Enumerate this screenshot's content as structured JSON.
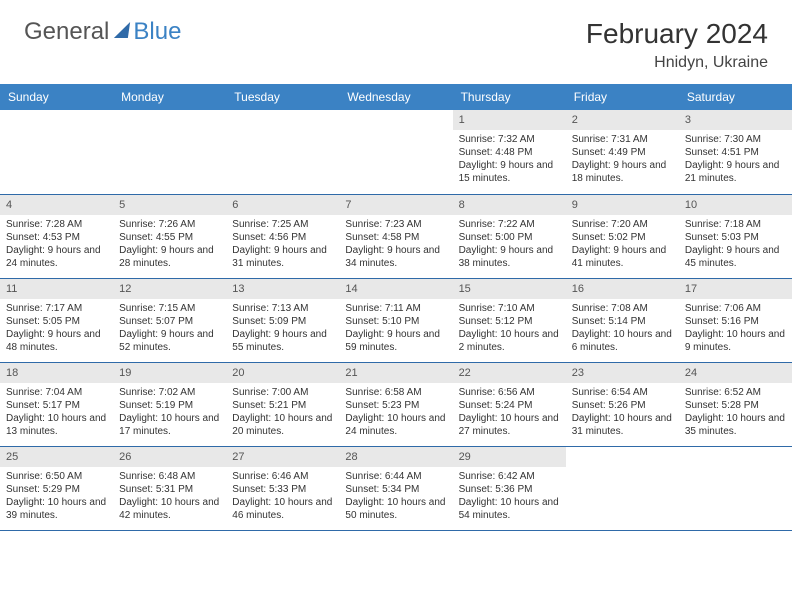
{
  "logo": {
    "general": "General",
    "blue": "Blue"
  },
  "header": {
    "month_title": "February 2024",
    "location": "Hnidyn, Ukraine"
  },
  "colors": {
    "header_bg": "#3b82c4",
    "row_border": "#2f6aa8",
    "daynum_bg": "#e8e8e8",
    "text": "#333333"
  },
  "day_names": [
    "Sunday",
    "Monday",
    "Tuesday",
    "Wednesday",
    "Thursday",
    "Friday",
    "Saturday"
  ],
  "weeks": [
    [
      null,
      null,
      null,
      null,
      {
        "n": "1",
        "sr": "Sunrise: 7:32 AM",
        "ss": "Sunset: 4:48 PM",
        "dl": "Daylight: 9 hours and 15 minutes."
      },
      {
        "n": "2",
        "sr": "Sunrise: 7:31 AM",
        "ss": "Sunset: 4:49 PM",
        "dl": "Daylight: 9 hours and 18 minutes."
      },
      {
        "n": "3",
        "sr": "Sunrise: 7:30 AM",
        "ss": "Sunset: 4:51 PM",
        "dl": "Daylight: 9 hours and 21 minutes."
      }
    ],
    [
      {
        "n": "4",
        "sr": "Sunrise: 7:28 AM",
        "ss": "Sunset: 4:53 PM",
        "dl": "Daylight: 9 hours and 24 minutes."
      },
      {
        "n": "5",
        "sr": "Sunrise: 7:26 AM",
        "ss": "Sunset: 4:55 PM",
        "dl": "Daylight: 9 hours and 28 minutes."
      },
      {
        "n": "6",
        "sr": "Sunrise: 7:25 AM",
        "ss": "Sunset: 4:56 PM",
        "dl": "Daylight: 9 hours and 31 minutes."
      },
      {
        "n": "7",
        "sr": "Sunrise: 7:23 AM",
        "ss": "Sunset: 4:58 PM",
        "dl": "Daylight: 9 hours and 34 minutes."
      },
      {
        "n": "8",
        "sr": "Sunrise: 7:22 AM",
        "ss": "Sunset: 5:00 PM",
        "dl": "Daylight: 9 hours and 38 minutes."
      },
      {
        "n": "9",
        "sr": "Sunrise: 7:20 AM",
        "ss": "Sunset: 5:02 PM",
        "dl": "Daylight: 9 hours and 41 minutes."
      },
      {
        "n": "10",
        "sr": "Sunrise: 7:18 AM",
        "ss": "Sunset: 5:03 PM",
        "dl": "Daylight: 9 hours and 45 minutes."
      }
    ],
    [
      {
        "n": "11",
        "sr": "Sunrise: 7:17 AM",
        "ss": "Sunset: 5:05 PM",
        "dl": "Daylight: 9 hours and 48 minutes."
      },
      {
        "n": "12",
        "sr": "Sunrise: 7:15 AM",
        "ss": "Sunset: 5:07 PM",
        "dl": "Daylight: 9 hours and 52 minutes."
      },
      {
        "n": "13",
        "sr": "Sunrise: 7:13 AM",
        "ss": "Sunset: 5:09 PM",
        "dl": "Daylight: 9 hours and 55 minutes."
      },
      {
        "n": "14",
        "sr": "Sunrise: 7:11 AM",
        "ss": "Sunset: 5:10 PM",
        "dl": "Daylight: 9 hours and 59 minutes."
      },
      {
        "n": "15",
        "sr": "Sunrise: 7:10 AM",
        "ss": "Sunset: 5:12 PM",
        "dl": "Daylight: 10 hours and 2 minutes."
      },
      {
        "n": "16",
        "sr": "Sunrise: 7:08 AM",
        "ss": "Sunset: 5:14 PM",
        "dl": "Daylight: 10 hours and 6 minutes."
      },
      {
        "n": "17",
        "sr": "Sunrise: 7:06 AM",
        "ss": "Sunset: 5:16 PM",
        "dl": "Daylight: 10 hours and 9 minutes."
      }
    ],
    [
      {
        "n": "18",
        "sr": "Sunrise: 7:04 AM",
        "ss": "Sunset: 5:17 PM",
        "dl": "Daylight: 10 hours and 13 minutes."
      },
      {
        "n": "19",
        "sr": "Sunrise: 7:02 AM",
        "ss": "Sunset: 5:19 PM",
        "dl": "Daylight: 10 hours and 17 minutes."
      },
      {
        "n": "20",
        "sr": "Sunrise: 7:00 AM",
        "ss": "Sunset: 5:21 PM",
        "dl": "Daylight: 10 hours and 20 minutes."
      },
      {
        "n": "21",
        "sr": "Sunrise: 6:58 AM",
        "ss": "Sunset: 5:23 PM",
        "dl": "Daylight: 10 hours and 24 minutes."
      },
      {
        "n": "22",
        "sr": "Sunrise: 6:56 AM",
        "ss": "Sunset: 5:24 PM",
        "dl": "Daylight: 10 hours and 27 minutes."
      },
      {
        "n": "23",
        "sr": "Sunrise: 6:54 AM",
        "ss": "Sunset: 5:26 PM",
        "dl": "Daylight: 10 hours and 31 minutes."
      },
      {
        "n": "24",
        "sr": "Sunrise: 6:52 AM",
        "ss": "Sunset: 5:28 PM",
        "dl": "Daylight: 10 hours and 35 minutes."
      }
    ],
    [
      {
        "n": "25",
        "sr": "Sunrise: 6:50 AM",
        "ss": "Sunset: 5:29 PM",
        "dl": "Daylight: 10 hours and 39 minutes."
      },
      {
        "n": "26",
        "sr": "Sunrise: 6:48 AM",
        "ss": "Sunset: 5:31 PM",
        "dl": "Daylight: 10 hours and 42 minutes."
      },
      {
        "n": "27",
        "sr": "Sunrise: 6:46 AM",
        "ss": "Sunset: 5:33 PM",
        "dl": "Daylight: 10 hours and 46 minutes."
      },
      {
        "n": "28",
        "sr": "Sunrise: 6:44 AM",
        "ss": "Sunset: 5:34 PM",
        "dl": "Daylight: 10 hours and 50 minutes."
      },
      {
        "n": "29",
        "sr": "Sunrise: 6:42 AM",
        "ss": "Sunset: 5:36 PM",
        "dl": "Daylight: 10 hours and 54 minutes."
      },
      null,
      null
    ]
  ]
}
